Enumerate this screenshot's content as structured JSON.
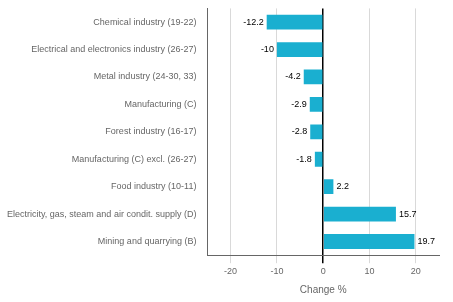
{
  "chart_data": {
    "type": "bar",
    "orientation": "horizontal",
    "categories": [
      "Chemical industry (19-22)",
      "Electrical and electronics industry (26-27)",
      "Metal industry (24-30, 33)",
      "Manufacturing (C)",
      "Forest industry (16-17)",
      "Manufacturing (C) excl. (26-27)",
      "Food industry (10-11)",
      "Electricity, gas, steam and air condit. supply (D)",
      "Mining and quarrying (B)"
    ],
    "values": [
      -12.2,
      -10.0,
      -4.2,
      -2.9,
      -2.8,
      -1.8,
      2.2,
      15.7,
      19.7
    ],
    "color": "#1aafd0",
    "xlabel": "Change %",
    "xlim": [
      -25,
      25
    ],
    "xticks": [
      -20,
      -10,
      0,
      10,
      20
    ],
    "grid": true,
    "data_labels": true
  }
}
